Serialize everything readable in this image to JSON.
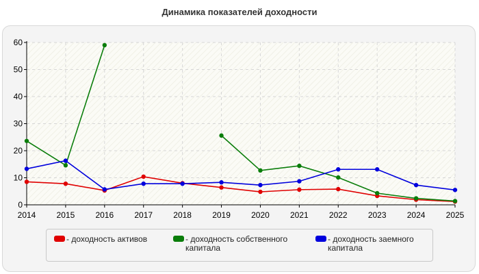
{
  "chart_data": {
    "type": "line",
    "title": "Динамика показателей доходности",
    "x": [
      2014,
      2015,
      2016,
      2017,
      2018,
      2019,
      2020,
      2021,
      2022,
      2023,
      2024,
      2025
    ],
    "ylim": [
      0,
      60
    ],
    "yticks": [
      0,
      10,
      20,
      30,
      40,
      50,
      60
    ],
    "grid": true,
    "legend_position": "bottom",
    "series": [
      {
        "name": "- доходность активов",
        "color": "#e00000",
        "values": [
          8.5,
          7.8,
          5.3,
          10.4,
          8.0,
          6.4,
          4.8,
          5.6,
          5.8,
          3.3,
          1.9,
          1.2
        ]
      },
      {
        "name": "- доходность собственного капитала",
        "color": "#0a7d0a",
        "values": [
          23.6,
          14.6,
          59.0,
          null,
          null,
          25.6,
          12.7,
          14.4,
          10.1,
          4.3,
          2.4,
          1.4
        ]
      },
      {
        "name": "- доходность заемного капитала",
        "color": "#0000dd",
        "values": [
          13.3,
          16.3,
          5.7,
          7.8,
          7.8,
          8.3,
          7.3,
          8.7,
          13.1,
          13.1,
          7.3,
          5.5
        ]
      }
    ]
  }
}
